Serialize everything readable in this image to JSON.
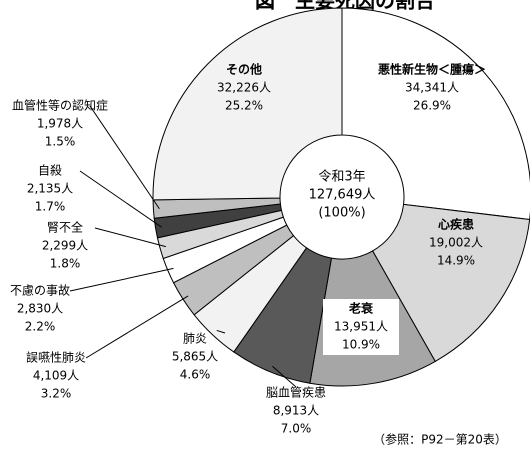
{
  "chart_data": {
    "type": "pie",
    "title": "図　主要死因の割合",
    "center_labels": [
      "令和3年",
      "127,649人",
      "(100%)"
    ],
    "note": "（参照：P92－第20表）",
    "categories": [
      "悪性新生物＜腫瘍＞",
      "心疾患",
      "老衰",
      "脳血管疾患",
      "肺炎",
      "誤嚥性肺炎",
      "不慮の事故",
      "腎不全",
      "自殺",
      "血管性等の認知症",
      "その他"
    ],
    "values": [
      34341,
      19002,
      13951,
      8913,
      5865,
      4109,
      2830,
      2299,
      2135,
      1978,
      32226
    ],
    "value_labels": [
      "34,341人",
      "19,002人",
      "13,951人",
      "8,913人",
      "5,865人",
      "4,109人",
      "2,830人",
      "2,299人",
      "2,135人",
      "1,978人",
      "32,226人"
    ],
    "percents": [
      26.9,
      14.9,
      10.9,
      7.0,
      4.6,
      3.2,
      2.2,
      1.8,
      1.7,
      1.5,
      25.2
    ],
    "percent_labels": [
      "26.9%",
      "14.9%",
      "10.9%",
      "7.0%",
      "4.6%",
      "3.2%",
      "2.2%",
      "1.8%",
      "1.7%",
      "1.5%",
      "25.2%"
    ],
    "colors": [
      "#ffffff",
      "#d9d9d9",
      "#a6a6a6",
      "#595959",
      "#f2f2f2",
      "#bfbfbf",
      "#ffffff",
      "#d9d9d9",
      "#404040",
      "#bfbfbf",
      "#f2f2f2"
    ]
  }
}
